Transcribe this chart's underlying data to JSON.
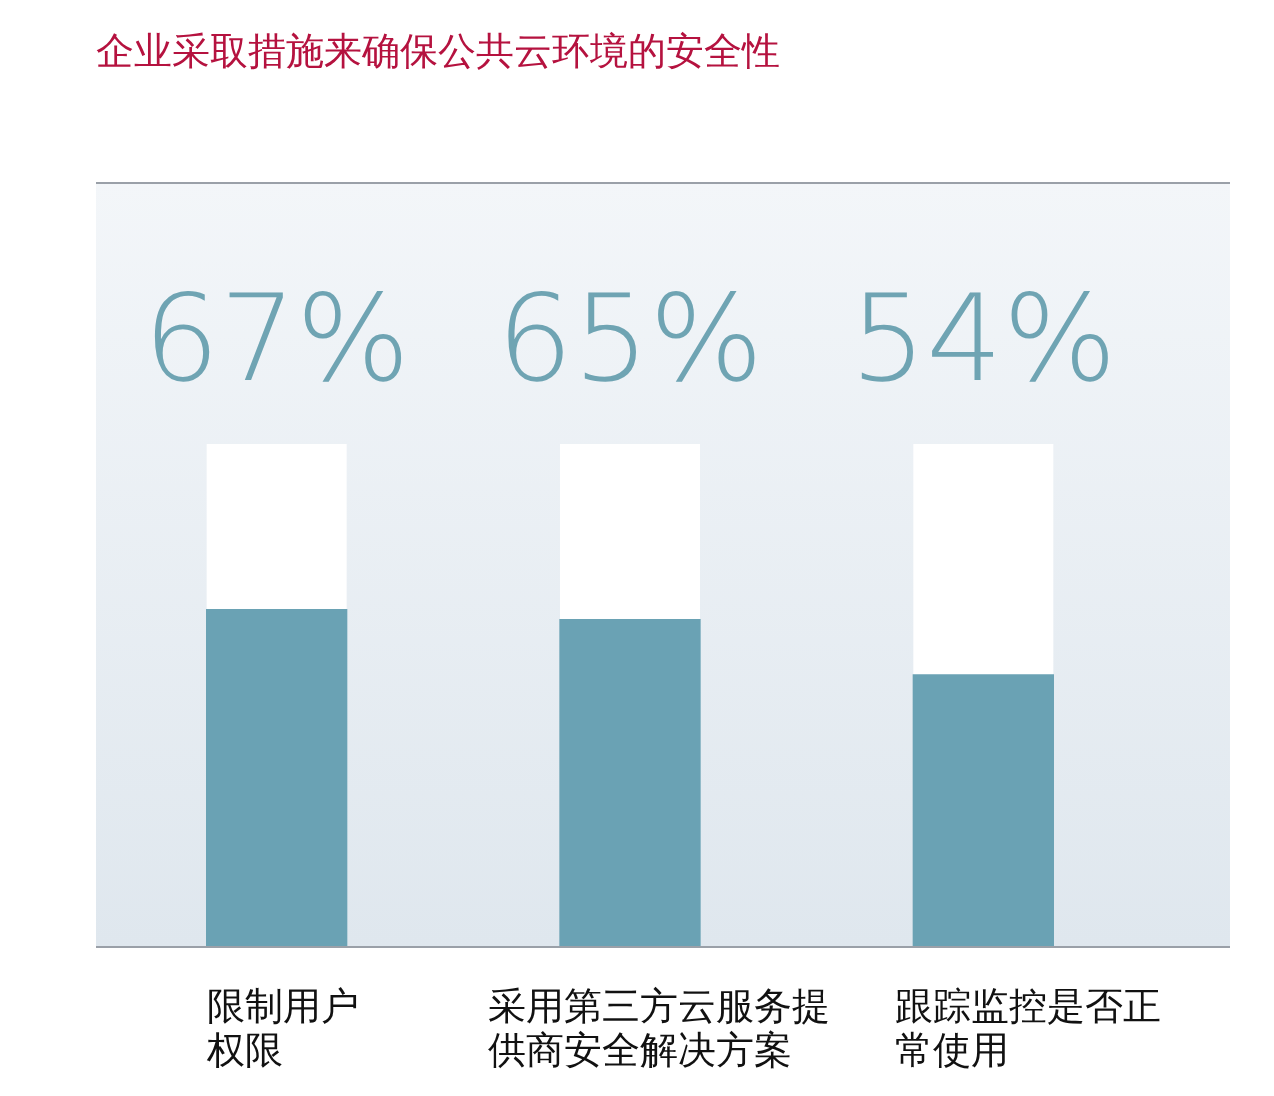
{
  "chart_data": {
    "type": "bar",
    "title": "企业采取措施来确保公共云环境的安全性",
    "categories": [
      "限制用户权限",
      "采用第三方云服务提供商安全解决方案",
      "跟踪监控是否正常使用"
    ],
    "values": [
      67,
      65,
      54
    ],
    "value_labels": [
      "67%",
      "65%",
      "54%"
    ],
    "color": "#6aa2b4",
    "ylim": [
      0,
      100
    ],
    "tick_labels": "x"
  }
}
